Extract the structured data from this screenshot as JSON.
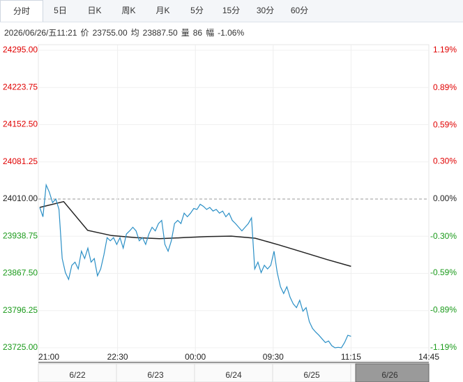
{
  "tabs": [
    "分时",
    "5日",
    "日K",
    "周K",
    "月K",
    "5分",
    "15分",
    "30分",
    "60分"
  ],
  "header": {
    "datetime": "2026/06/26/五11:21",
    "items": [
      {
        "label": "价",
        "value": "23755.00"
      },
      {
        "label": "均",
        "value": "23887.50"
      },
      {
        "label": "量",
        "value": "86"
      },
      {
        "label": "幅",
        "value": "-1.06%"
      }
    ]
  },
  "chart_data": {
    "type": "line",
    "x_labels": [
      "21:00",
      "22:30",
      "00:00",
      "09:30",
      "11:15",
      "14:45"
    ],
    "ylim": [
      23725,
      24295
    ],
    "yticks": [
      {
        "value": 24295,
        "label": "24295.00"
      },
      {
        "value": 24223.75,
        "label": "24223.75"
      },
      {
        "value": 24152.5,
        "label": "24152.50"
      },
      {
        "value": 24081.25,
        "label": "24081.25"
      },
      {
        "value": 24010,
        "label": "24010.00"
      },
      {
        "value": 23938.75,
        "label": "23938.75"
      },
      {
        "value": 23867.5,
        "label": "23867.50"
      },
      {
        "value": 23796.25,
        "label": "23796.25"
      },
      {
        "value": 23725,
        "label": "23725.00"
      }
    ],
    "y2lim": [
      -1.19,
      1.19
    ],
    "y2ticks": [
      {
        "value": 1.19,
        "label": "1.19%"
      },
      {
        "value": 0.89,
        "label": "0.89%"
      },
      {
        "value": 0.59,
        "label": "0.59%"
      },
      {
        "value": 0.3,
        "label": "0.30%"
      },
      {
        "value": 0,
        "label": "0.00%"
      },
      {
        "value": -0.3,
        "label": "-0.30%"
      },
      {
        "value": -0.59,
        "label": "-0.59%"
      },
      {
        "value": -0.89,
        "label": "-0.89%"
      },
      {
        "value": -1.19,
        "label": "-1.19%"
      }
    ],
    "series": [
      {
        "name": "价",
        "color": "#2a8fc6",
        "values": [
          23994,
          23976,
          24037,
          24023,
          24003,
          24010,
          23990,
          23896,
          23869,
          23856,
          23883,
          23889,
          23876,
          23910,
          23896,
          23916,
          23889,
          23896,
          23863,
          23876,
          23903,
          23936,
          23930,
          23936,
          23923,
          23936,
          23916,
          23943,
          23949,
          23956,
          23949,
          23930,
          23936,
          23923,
          23943,
          23956,
          23949,
          23963,
          23969,
          23923,
          23910,
          23930,
          23963,
          23969,
          23963,
          23983,
          23976,
          23983,
          23992,
          23990,
          24000,
          23996,
          23990,
          23994,
          23987,
          23990,
          23983,
          23987,
          23976,
          23983,
          23969,
          23963,
          23956,
          23949,
          23956,
          23963,
          23974,
          23876,
          23889,
          23869,
          23883,
          23876,
          23883,
          23910,
          23869,
          23842,
          23829,
          23842,
          23822,
          23809,
          23802,
          23816,
          23795,
          23802,
          23775,
          23762,
          23755,
          23749,
          23742,
          23735,
          23738,
          23729,
          23725,
          23726,
          23725,
          23735,
          23749,
          23747
        ]
      },
      {
        "name": "均",
        "color": "#222222",
        "values": [
          23994,
          24005,
          23950,
          23940,
          23936,
          23934,
          23936,
          23938,
          23939,
          23935,
          23922,
          23908,
          23894,
          23881
        ]
      }
    ]
  },
  "navigator": {
    "dates": [
      "6/22",
      "6/23",
      "6/24",
      "6/25",
      "6/26"
    ]
  }
}
